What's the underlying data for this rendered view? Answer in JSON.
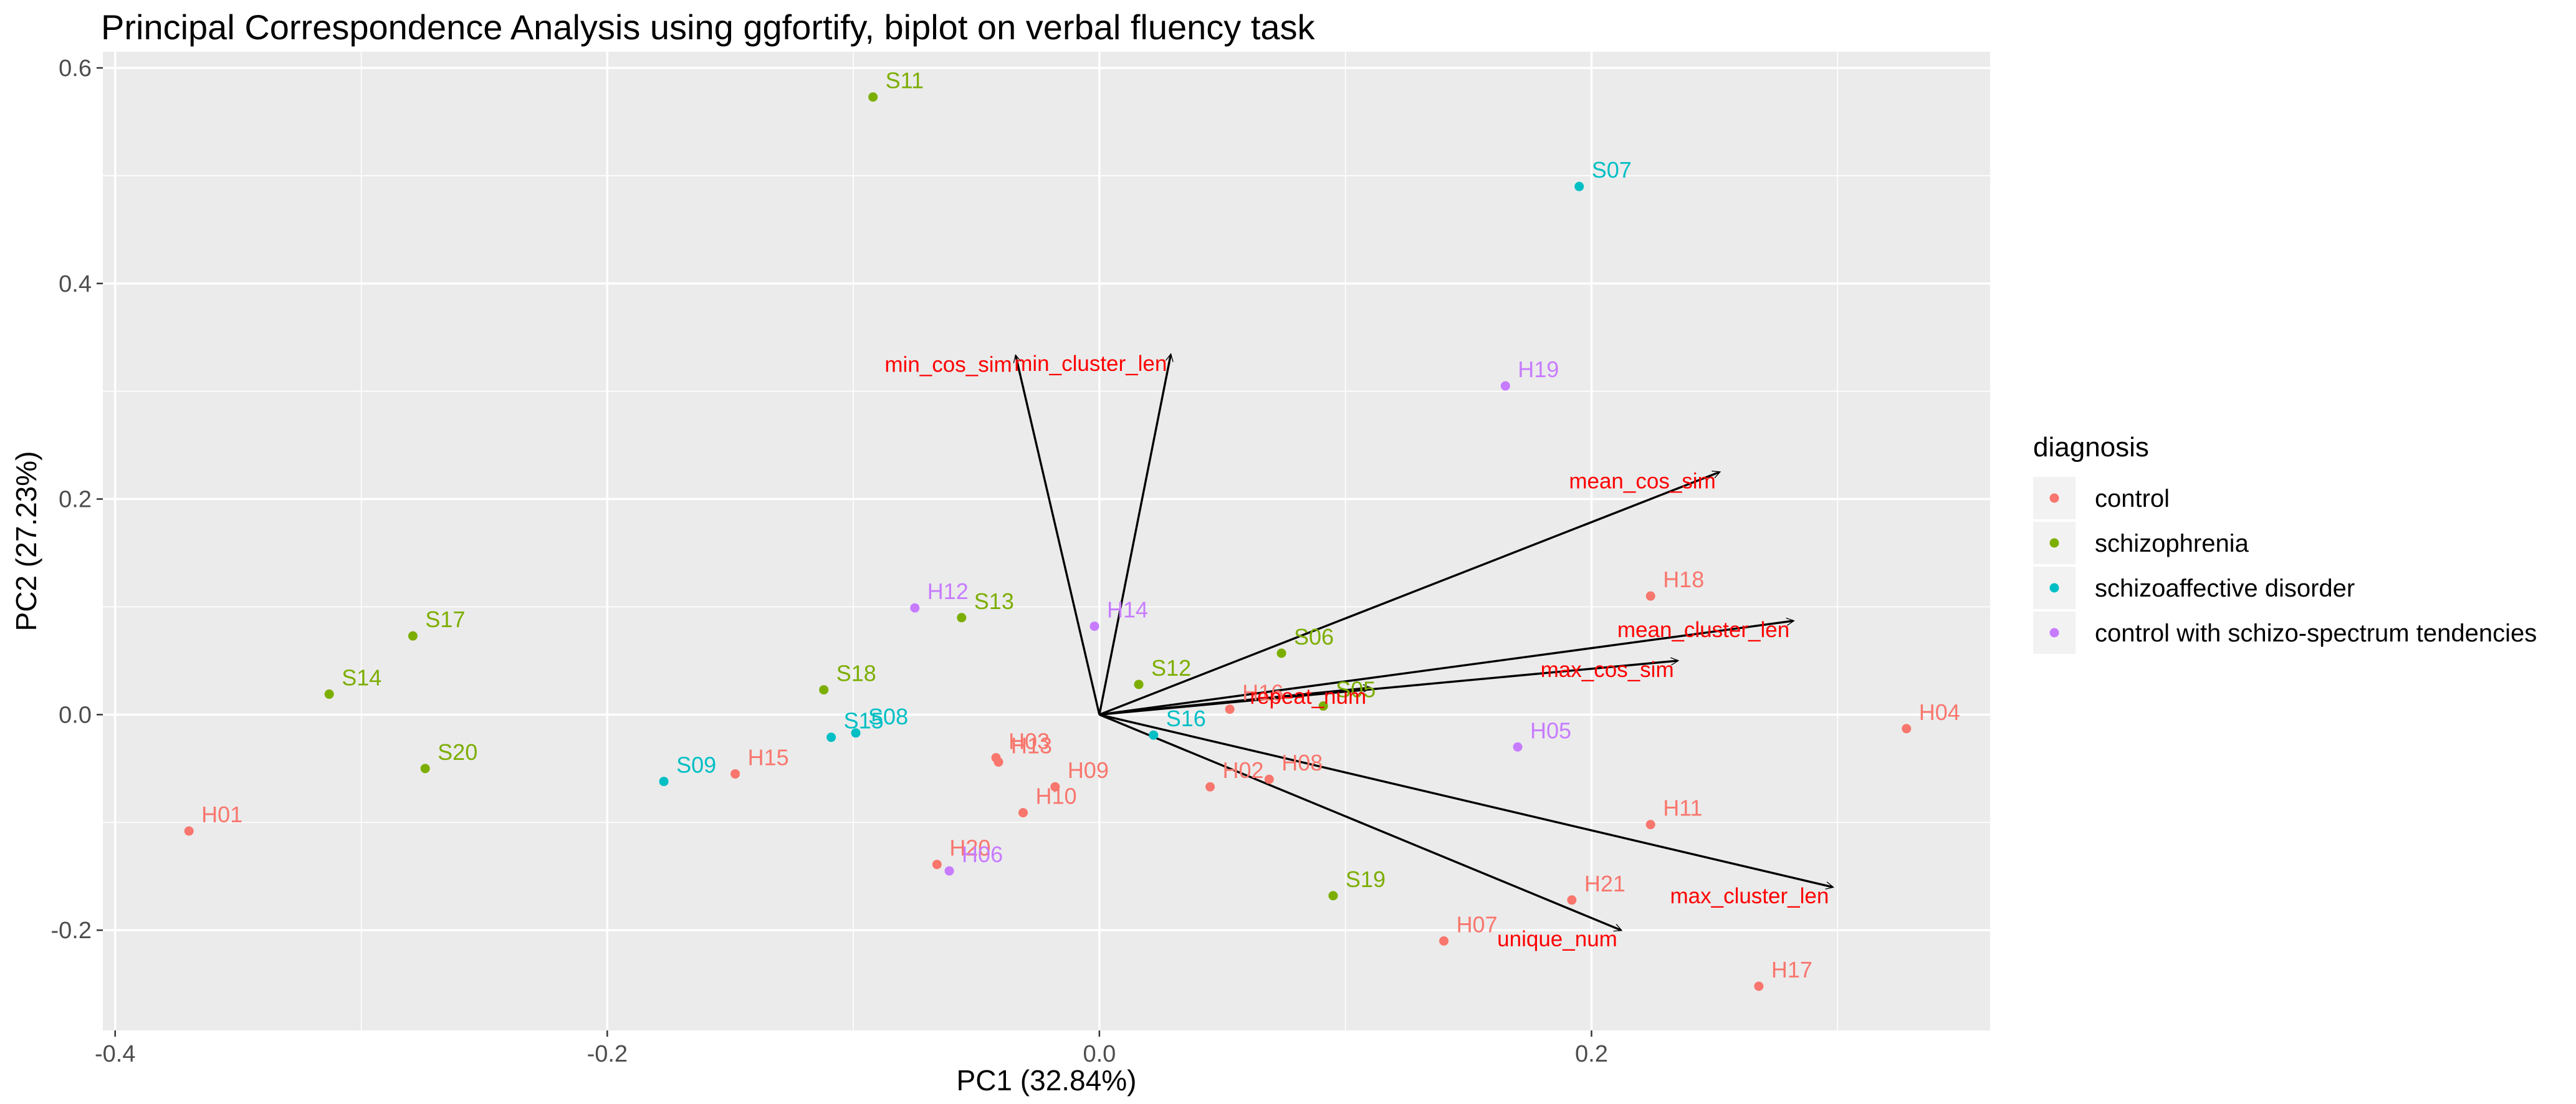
{
  "chart_data": {
    "type": "scatter",
    "title": "Principal Correspondence Analysis using ggfortify, biplot on verbal fluency task",
    "xlabel": "PC1 (32.84%)",
    "ylabel": "PC2 (27.23%)",
    "xlim": [
      -0.405,
      0.362
    ],
    "ylim": [
      -0.293,
      0.615
    ],
    "x_ticks": [
      {
        "value": -0.4,
        "label": "-0.4"
      },
      {
        "value": -0.2,
        "label": "-0.2"
      },
      {
        "value": 0.0,
        "label": "0.0"
      },
      {
        "value": 0.2,
        "label": "0.2"
      }
    ],
    "y_ticks": [
      {
        "value": -0.2,
        "label": "-0.2"
      },
      {
        "value": 0.0,
        "label": "0.0"
      },
      {
        "value": 0.2,
        "label": "0.2"
      },
      {
        "value": 0.4,
        "label": "0.4"
      },
      {
        "value": 0.6,
        "label": "0.6"
      }
    ],
    "grid": true,
    "legend": {
      "title": "diagnosis",
      "position": "right",
      "entries": [
        {
          "label": "control",
          "color": "#F8766D"
        },
        {
          "label": "schizophrenia",
          "color": "#7CAE00"
        },
        {
          "label": "schizoaffective disorder",
          "color": "#00BFC4"
        },
        {
          "label": "control with schizo-spectrum tendencies",
          "color": "#C77CFF"
        }
      ]
    },
    "points": [
      {
        "label": "H01",
        "group": 0,
        "x": -0.37,
        "y": -0.108
      },
      {
        "label": "H02",
        "group": 0,
        "x": 0.045,
        "y": -0.067
      },
      {
        "label": "H03",
        "group": 0,
        "x": -0.042,
        "y": -0.04
      },
      {
        "label": "H04",
        "group": 0,
        "x": 0.328,
        "y": -0.013
      },
      {
        "label": "H07",
        "group": 0,
        "x": 0.14,
        "y": -0.21
      },
      {
        "label": "H08",
        "group": 0,
        "x": 0.069,
        "y": -0.06
      },
      {
        "label": "H09",
        "group": 0,
        "x": -0.018,
        "y": -0.067
      },
      {
        "label": "H10",
        "group": 0,
        "x": -0.031,
        "y": -0.091
      },
      {
        "label": "H11",
        "group": 0,
        "x": 0.224,
        "y": -0.102
      },
      {
        "label": "H13",
        "group": 0,
        "x": -0.041,
        "y": -0.044
      },
      {
        "label": "H15",
        "group": 0,
        "x": -0.148,
        "y": -0.055
      },
      {
        "label": "H16",
        "group": 0,
        "x": 0.053,
        "y": 0.005
      },
      {
        "label": "H17",
        "group": 0,
        "x": 0.268,
        "y": -0.252
      },
      {
        "label": "H18",
        "group": 0,
        "x": 0.224,
        "y": 0.11
      },
      {
        "label": "H20",
        "group": 0,
        "x": -0.066,
        "y": -0.139
      },
      {
        "label": "H21",
        "group": 0,
        "x": 0.192,
        "y": -0.172
      },
      {
        "label": "S05",
        "group": 1,
        "x": 0.091,
        "y": 0.008
      },
      {
        "label": "S06",
        "group": 1,
        "x": 0.074,
        "y": 0.057
      },
      {
        "label": "S11",
        "group": 1,
        "x": -0.092,
        "y": 0.573
      },
      {
        "label": "S12",
        "group": 1,
        "x": 0.016,
        "y": 0.028
      },
      {
        "label": "S13",
        "group": 1,
        "x": -0.056,
        "y": 0.09
      },
      {
        "label": "S14",
        "group": 1,
        "x": -0.313,
        "y": 0.019
      },
      {
        "label": "S17",
        "group": 1,
        "x": -0.279,
        "y": 0.073
      },
      {
        "label": "S18",
        "group": 1,
        "x": -0.112,
        "y": 0.023
      },
      {
        "label": "S19",
        "group": 1,
        "x": 0.095,
        "y": -0.168
      },
      {
        "label": "S20",
        "group": 1,
        "x": -0.274,
        "y": -0.05
      },
      {
        "label": "S07",
        "group": 2,
        "x": 0.195,
        "y": 0.49
      },
      {
        "label": "S08",
        "group": 2,
        "x": -0.099,
        "y": -0.017
      },
      {
        "label": "S09",
        "group": 2,
        "x": -0.177,
        "y": -0.062
      },
      {
        "label": "S15",
        "group": 2,
        "x": -0.109,
        "y": -0.021
      },
      {
        "label": "S16",
        "group": 2,
        "x": 0.022,
        "y": -0.019
      },
      {
        "label": "H05",
        "group": 3,
        "x": 0.17,
        "y": -0.03
      },
      {
        "label": "H06",
        "group": 3,
        "x": -0.061,
        "y": -0.145
      },
      {
        "label": "H12",
        "group": 3,
        "x": -0.075,
        "y": 0.099
      },
      {
        "label": "H14",
        "group": 3,
        "x": -0.002,
        "y": 0.082
      },
      {
        "label": "H19",
        "group": 3,
        "x": 0.165,
        "y": 0.305
      }
    ],
    "vectors": [
      {
        "label": "min_cos_sim",
        "x": -0.034,
        "y": 0.333
      },
      {
        "label": "min_cluster_len",
        "x": 0.029,
        "y": 0.334
      },
      {
        "label": "mean_cos_sim",
        "x": 0.252,
        "y": 0.225
      },
      {
        "label": "mean_cluster_len",
        "x": 0.282,
        "y": 0.087
      },
      {
        "label": "repeat_num",
        "x": 0.11,
        "y": 0.025
      },
      {
        "label": "max_cos_sim",
        "x": 0.235,
        "y": 0.05
      },
      {
        "label": "max_cluster_len",
        "x": 0.298,
        "y": -0.16
      },
      {
        "label": "unique_num",
        "x": 0.212,
        "y": -0.2
      }
    ]
  }
}
